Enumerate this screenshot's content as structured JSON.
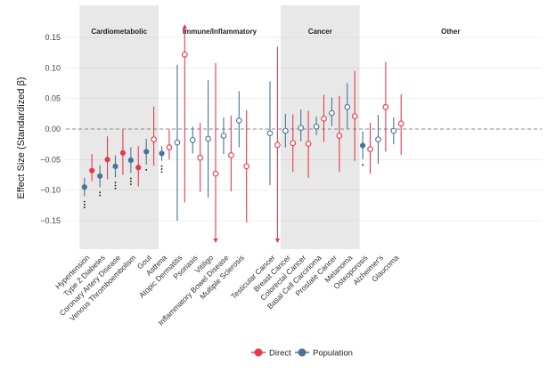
{
  "chart_data": {
    "type": "scatter",
    "ylabel": "Effect Size (Standardized β)",
    "ylim": [
      -0.185,
      0.185
    ],
    "yticks": [
      -0.15,
      -0.1,
      -0.05,
      0.0,
      0.05,
      0.1,
      0.15
    ],
    "ytick_labels": [
      "−0.15",
      "−0.10",
      "−0.05",
      "0.00",
      "0.05",
      "0.10",
      "0.15"
    ],
    "grid": true,
    "reference_line": 0,
    "legend": {
      "position": "bottom",
      "entries": [
        "Direct",
        "Population"
      ]
    },
    "colors": {
      "Direct": "#e8394a",
      "Population": "#4a7396",
      "shade": "#e8e8e8",
      "dots": "#222222"
    },
    "groups": [
      {
        "label": "Cardiometabolic",
        "shaded": true,
        "start": 0,
        "end": 5
      },
      {
        "label": "Immune/Inflammatory",
        "shaded": false,
        "start": 6,
        "end": 11
      },
      {
        "label": "Cancer",
        "shaded": true,
        "start": 12,
        "end": 17
      },
      {
        "label": "Other",
        "shaded": false,
        "start": 18,
        "end": 20
      }
    ],
    "categories": [
      "Hypertension",
      "Type 2 Diabetes",
      "Coronary Artery Disease",
      "Venous Thromboembolism",
      "Gout",
      "Asthma",
      "Atopic Dermatitis",
      "Psoriasis",
      "Vitiligo",
      "Inflammatory Bowel Disease",
      "Multiple Sclerosis",
      "Testicular Cancer",
      "Breast Cancer",
      "Colorectal Cancer",
      "Basal Cell Carcinoma",
      "Prostate Cancer",
      "Melanoma",
      "Osteoporosis",
      "Alzheimer's",
      "Glaucoma"
    ],
    "category_slots": [
      0,
      1,
      2,
      3,
      4,
      5,
      6,
      7,
      8,
      9,
      10,
      12,
      13,
      14,
      15,
      16,
      17,
      18,
      19,
      20
    ],
    "series": [
      {
        "name": "Population",
        "estimate": [
          -0.095,
          -0.077,
          -0.061,
          -0.051,
          -0.037,
          -0.04,
          -0.022,
          -0.018,
          -0.016,
          -0.011,
          0.014,
          -0.007,
          -0.003,
          0.002,
          0.004,
          0.026,
          0.036,
          -0.027,
          -0.017,
          -0.003
        ],
        "lower": [
          -0.11,
          -0.095,
          -0.079,
          -0.072,
          -0.058,
          -0.052,
          -0.15,
          -0.04,
          -0.112,
          -0.041,
          -0.03,
          -0.092,
          -0.03,
          -0.02,
          -0.01,
          0.005,
          0.0,
          -0.05,
          -0.057,
          -0.025
        ],
        "upper": [
          -0.08,
          -0.059,
          -0.043,
          -0.03,
          -0.016,
          -0.028,
          0.105,
          0.004,
          0.08,
          0.019,
          0.062,
          0.078,
          0.025,
          0.032,
          0.02,
          0.052,
          0.075,
          -0.004,
          0.023,
          0.019
        ],
        "filled": [
          true,
          true,
          true,
          true,
          true,
          true,
          false,
          false,
          false,
          false,
          false,
          false,
          false,
          false,
          false,
          false,
          false,
          true,
          false,
          false
        ]
      },
      {
        "name": "Direct",
        "estimate": [
          -0.068,
          -0.05,
          -0.039,
          -0.063,
          -0.017,
          -0.03,
          0.122,
          -0.047,
          -0.073,
          -0.043,
          -0.061,
          -0.026,
          -0.023,
          -0.024,
          0.017,
          -0.011,
          0.021,
          -0.033,
          0.036,
          0.009
        ],
        "lower": [
          -0.085,
          -0.082,
          -0.075,
          -0.094,
          -0.06,
          -0.05,
          -0.12,
          -0.103,
          -0.185,
          -0.102,
          -0.153,
          -0.185,
          -0.07,
          -0.08,
          -0.021,
          -0.07,
          -0.052,
          -0.073,
          -0.037,
          -0.042
        ],
        "upper": [
          -0.041,
          -0.012,
          -0.001,
          -0.028,
          0.037,
          -0.001,
          0.17,
          0.01,
          0.108,
          0.022,
          0.031,
          0.135,
          0.024,
          0.03,
          0.056,
          0.054,
          0.095,
          0.01,
          0.11,
          0.057
        ],
        "filled": [
          true,
          true,
          true,
          true,
          false,
          false,
          false,
          false,
          false,
          false,
          false,
          false,
          false,
          false,
          false,
          false,
          false,
          false,
          false,
          false
        ],
        "arrow_up": [
          false,
          false,
          false,
          false,
          false,
          false,
          true,
          false,
          false,
          false,
          false,
          false,
          false,
          false,
          false,
          false,
          false,
          false,
          false,
          false
        ],
        "arrow_down": [
          false,
          false,
          false,
          false,
          false,
          false,
          false,
          false,
          true,
          false,
          false,
          true,
          false,
          false,
          false,
          false,
          false,
          false,
          false,
          false
        ]
      }
    ],
    "significance_dots": [
      3,
      2,
      3,
      3,
      1,
      3,
      0,
      0,
      0,
      0,
      0,
      0,
      0,
      0,
      0,
      0,
      0,
      1,
      0,
      0
    ]
  }
}
